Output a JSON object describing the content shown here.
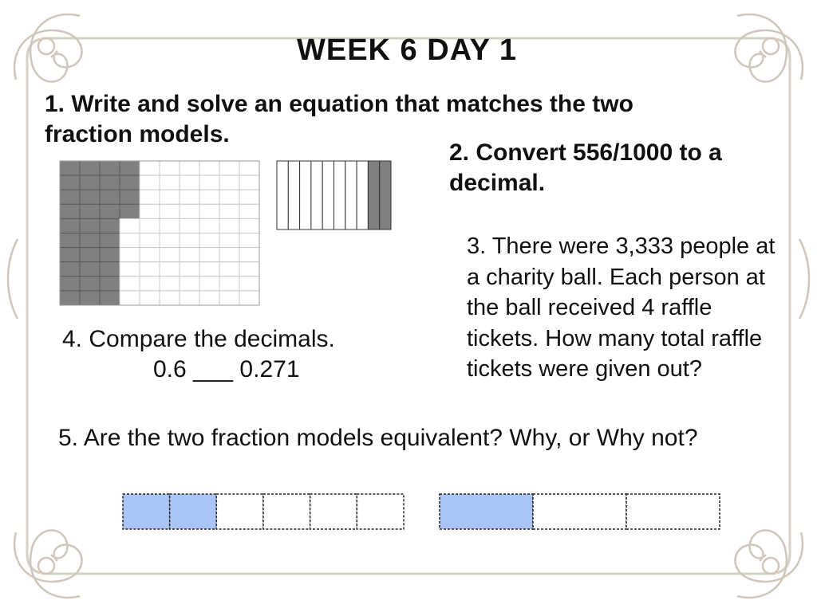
{
  "title": "WEEK 6 DAY 1",
  "questions": {
    "q1": "1. Write and solve an equation that matches the two fraction models.",
    "q2": "2. Convert 556/1000 to a decimal.",
    "q3": "3. There were 3,333 people at a charity ball. Each person at the ball received 4 raffle tickets. How many total raffle tickets were given out?",
    "q4_text": "4.  Compare the decimals.",
    "q4_expr": "0.6 ___ 0.271",
    "q5": "5.  Are the two fraction models equivalent? Why, or Why not?"
  },
  "models": {
    "hundred_grid": {
      "columns": 10,
      "rows": 10,
      "shaded_cells": 34,
      "shade_color": "#808080"
    },
    "tenths_strip": {
      "parts": 10,
      "shaded_parts": 2,
      "shade_color": "#808080"
    },
    "sixths_bar": {
      "parts": 6,
      "shaded_parts": 2,
      "shade_color": "#a9c4f5"
    },
    "thirds_bar": {
      "parts": 3,
      "shaded_parts": 1,
      "shade_color": "#a9c4f5"
    }
  }
}
